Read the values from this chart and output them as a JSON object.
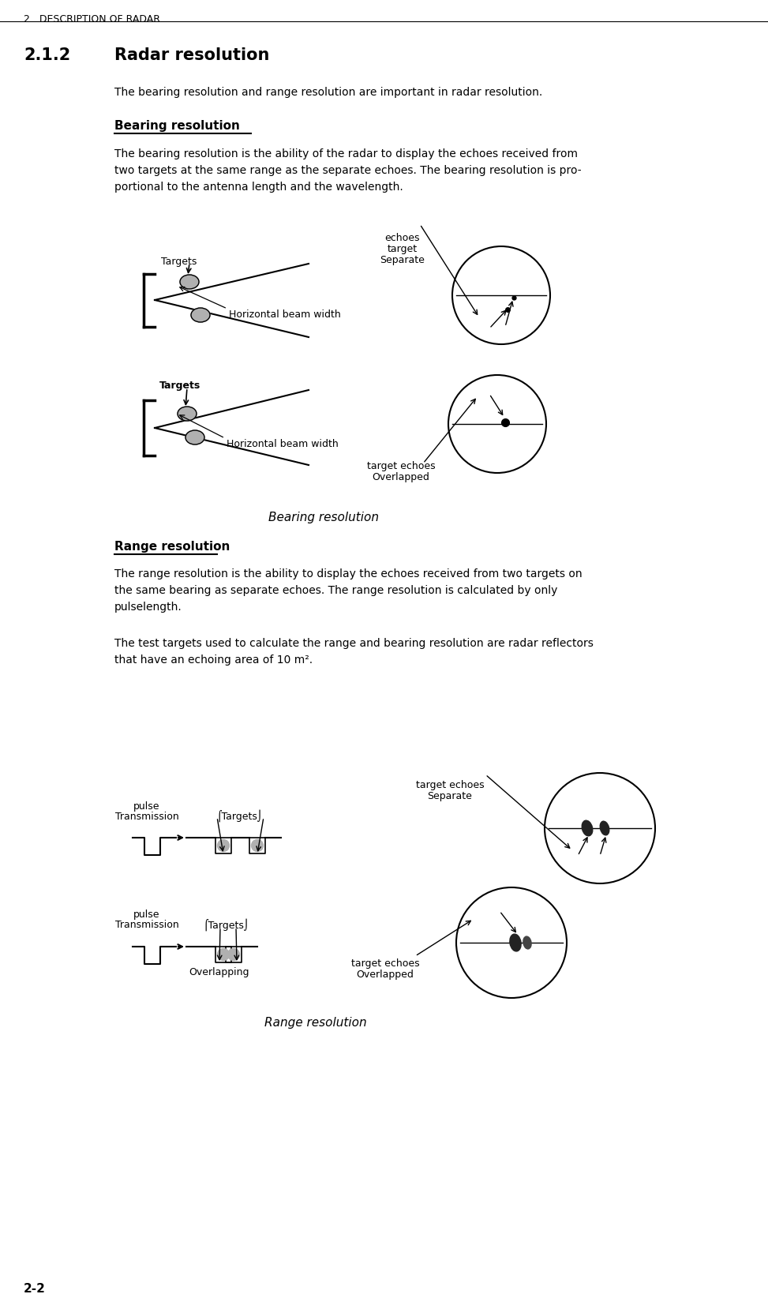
{
  "bg_color": "#ffffff",
  "header_text": "2.  DESCRIPTION OF RADAR",
  "section_num": "2.1.2",
  "section_title": "Radar resolution",
  "intro_text": "The bearing resolution and range resolution are important in radar resolution.",
  "bearing_heading": "Bearing resolution",
  "bearing_para": "The bearing resolution is the ability of the radar to display the echoes received from\ntwo targets at the same range as the separate echoes. The bearing resolution is pro-\nportional to the antenna length and the wavelength.",
  "bearing_caption": "Bearing resolution",
  "range_heading": "Range resolution",
  "range_para1": "The range resolution is the ability to display the echoes received from two targets on\nthe same bearing as separate echoes. The range resolution is calculated by only\npulselength.",
  "range_para2": "The test targets used to calculate the range and bearing resolution are radar reflectors\nthat have an echoing area of 10 m².",
  "range_caption": "Range resolution",
  "page_num": "2-2",
  "text_color": "#000000",
  "diagram_color": "#000000",
  "gray_fill": "#b0b0b0"
}
